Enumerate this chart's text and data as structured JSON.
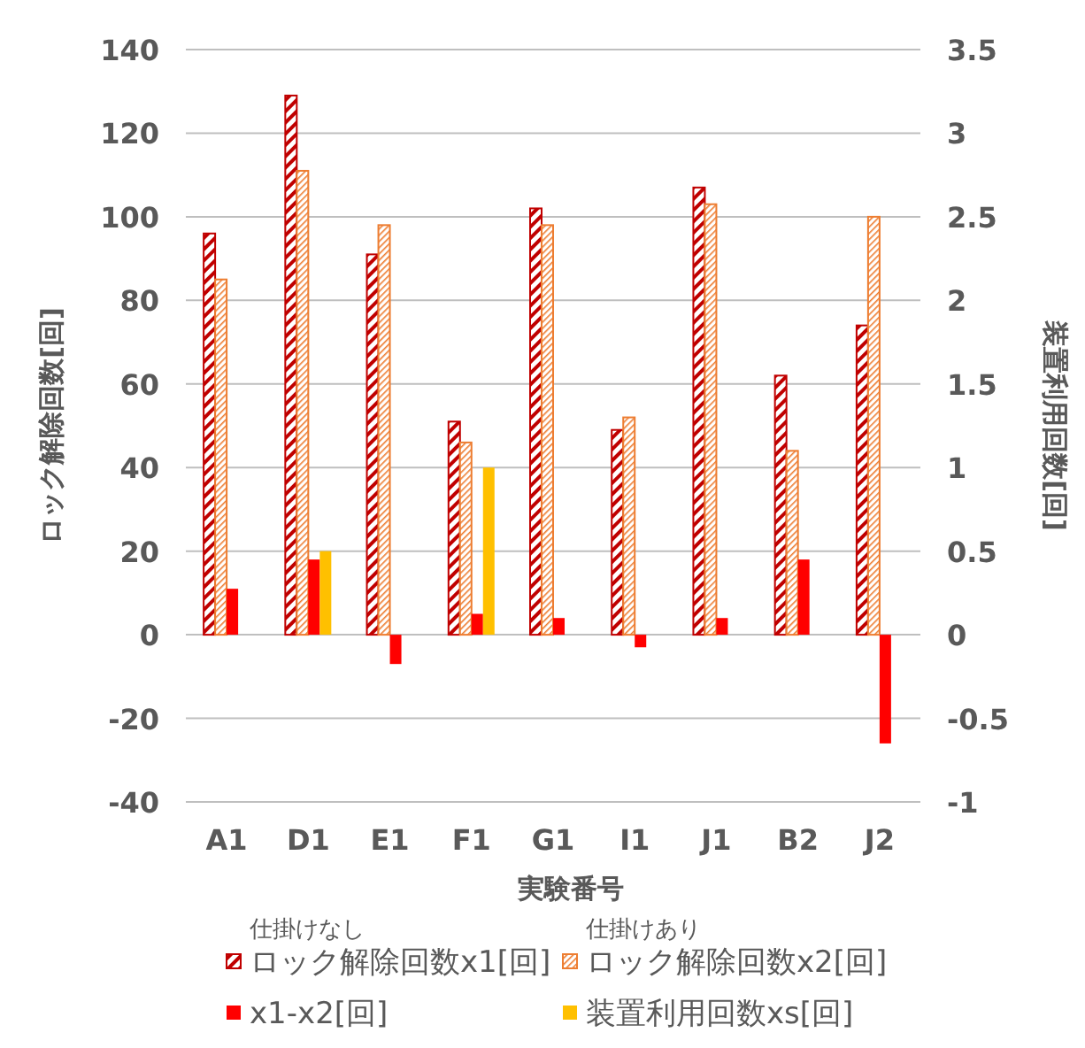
{
  "chart_data": {
    "type": "bar",
    "categories": [
      "A1",
      "D1",
      "E1",
      "F1",
      "G1",
      "I1",
      "J1",
      "B2",
      "J2"
    ],
    "series": [
      {
        "name": "ロック解除回数x1[回]",
        "color": "#c00000",
        "values": [
          96,
          129,
          91,
          51,
          102,
          49,
          107,
          62,
          74
        ]
      },
      {
        "name": "ロック解除回数x2[回]",
        "color": "#ed7d31",
        "values": [
          85,
          111,
          98,
          46,
          98,
          52,
          103,
          44,
          100
        ]
      },
      {
        "name": "x1-x2[回]",
        "color": "#ff0000",
        "values": [
          11,
          18,
          -7,
          5,
          4,
          -3,
          4,
          18,
          -26
        ]
      },
      {
        "name": "装置利用回数xs[回]",
        "color": "#ffc000",
        "axis": "y2",
        "values": [
          0,
          0.5,
          0,
          1,
          0,
          0,
          0,
          0,
          0
        ]
      }
    ],
    "xlabel": "実験番号",
    "ylabel": "ロック解除回数[回]",
    "y2label": "装置利用回数[回]",
    "ylim": [
      -40,
      140
    ],
    "yticks": [
      -40,
      -20,
      0,
      20,
      40,
      60,
      80,
      100,
      120,
      140
    ],
    "y2lim": [
      -1,
      3.5
    ],
    "y2ticks": [
      -1,
      -0.5,
      0,
      0.5,
      1,
      1.5,
      2,
      2.5,
      3,
      3.5
    ],
    "annotations": [
      "仕掛けなし",
      "仕掛けあり"
    ],
    "grid": "y",
    "legend": "bottom"
  }
}
